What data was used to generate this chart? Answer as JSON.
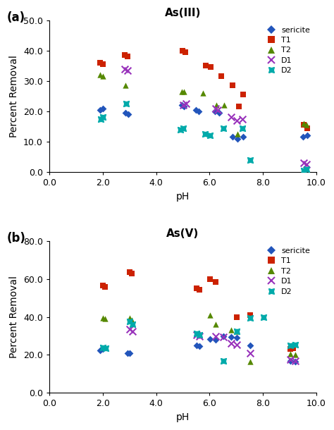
{
  "panel_a": {
    "title": "As(III)",
    "xlabel": "pH",
    "ylabel": "Percent Removal",
    "xlim": [
      0.0,
      10.0
    ],
    "ylim": [
      0.0,
      50.0
    ],
    "yticks": [
      0.0,
      10.0,
      20.0,
      30.0,
      40.0,
      50.0
    ],
    "xticks": [
      0.0,
      2.0,
      4.0,
      6.0,
      8.0,
      10.0
    ],
    "sericite": {
      "x": [
        1.9,
        2.0,
        2.85,
        2.95,
        4.95,
        5.05,
        5.5,
        5.6,
        6.2,
        6.35,
        6.85,
        7.05,
        7.25,
        9.5,
        9.65
      ],
      "y": [
        20.5,
        21.0,
        19.5,
        19.0,
        22.0,
        21.5,
        20.5,
        20.0,
        20.0,
        19.5,
        11.5,
        11.0,
        11.5,
        11.5,
        12.0
      ]
    },
    "T1": {
      "x": [
        1.9,
        2.0,
        2.82,
        2.92,
        5.0,
        5.1,
        5.85,
        6.05,
        6.45,
        6.85,
        7.1,
        7.25,
        9.52,
        9.67
      ],
      "y": [
        36.0,
        35.5,
        38.5,
        38.0,
        40.0,
        39.5,
        35.0,
        34.5,
        31.5,
        28.5,
        21.5,
        25.5,
        15.5,
        14.5
      ]
    },
    "T2": {
      "x": [
        1.9,
        2.0,
        2.85,
        4.95,
        5.05,
        5.75,
        6.25,
        6.55,
        7.05,
        9.52,
        9.62
      ],
      "y": [
        32.0,
        31.5,
        28.5,
        26.5,
        26.5,
        26.0,
        22.0,
        22.0,
        12.5,
        16.0,
        15.5
      ]
    },
    "D1": {
      "x": [
        2.82,
        2.92,
        5.02,
        5.12,
        6.22,
        6.32,
        6.82,
        7.02,
        7.22,
        9.52,
        9.62
      ],
      "y": [
        34.0,
        33.5,
        22.0,
        22.5,
        21.0,
        20.5,
        18.0,
        17.0,
        17.5,
        3.0,
        2.5
      ]
    },
    "D2": {
      "x": [
        1.92,
        2.02,
        2.87,
        4.92,
        5.02,
        5.82,
        6.02,
        6.52,
        7.22,
        7.52,
        9.52,
        9.62
      ],
      "y": [
        17.5,
        18.0,
        22.5,
        14.0,
        14.5,
        12.5,
        12.0,
        14.5,
        14.5,
        4.0,
        0.5,
        1.0
      ]
    }
  },
  "panel_b": {
    "title": "As(V)",
    "xlabel": "pH",
    "ylabel": "Percent Removal",
    "xlim": [
      0.0,
      10.0
    ],
    "ylim": [
      0.0,
      80.0
    ],
    "yticks": [
      0.0,
      20.0,
      40.0,
      60.0,
      80.0
    ],
    "xticks": [
      0.0,
      2.0,
      4.0,
      6.0,
      8.0,
      10.0
    ],
    "sericite": {
      "x": [
        1.9,
        2.0,
        2.92,
        3.02,
        5.52,
        5.62,
        6.02,
        6.22,
        6.52,
        6.82,
        7.02,
        7.52,
        9.02,
        9.22
      ],
      "y": [
        22.5,
        23.0,
        21.0,
        21.0,
        25.0,
        24.5,
        28.5,
        28.0,
        30.0,
        29.5,
        29.0,
        25.0,
        17.0,
        16.5
      ]
    },
    "T1": {
      "x": [
        2.0,
        2.1,
        3.0,
        3.1,
        5.52,
        5.62,
        6.02,
        6.22,
        7.02,
        7.52,
        9.02,
        9.12
      ],
      "y": [
        56.5,
        56.0,
        63.5,
        63.0,
        55.0,
        54.5,
        60.0,
        58.5,
        40.0,
        41.0,
        23.0,
        23.5
      ]
    },
    "T2": {
      "x": [
        2.0,
        2.1,
        3.0,
        3.1,
        6.02,
        6.22,
        6.82,
        7.02,
        7.52,
        9.02,
        9.22
      ],
      "y": [
        39.5,
        39.0,
        39.5,
        38.5,
        41.0,
        36.0,
        33.0,
        32.5,
        16.5,
        20.5,
        20.0
      ]
    },
    "D1": {
      "x": [
        3.02,
        3.12,
        5.52,
        5.62,
        6.22,
        6.52,
        6.82,
        7.02,
        7.52,
        9.02,
        9.22
      ],
      "y": [
        33.5,
        32.5,
        30.5,
        30.0,
        30.0,
        29.5,
        26.0,
        25.5,
        21.0,
        17.5,
        17.0
      ]
    },
    "D2": {
      "x": [
        2.02,
        2.12,
        3.02,
        3.12,
        5.52,
        5.62,
        6.52,
        7.02,
        7.52,
        8.02,
        9.02,
        9.22
      ],
      "y": [
        24.0,
        23.5,
        37.5,
        36.0,
        31.5,
        30.5,
        17.0,
        32.5,
        39.5,
        40.0,
        25.0,
        25.5
      ]
    }
  },
  "colors": {
    "sericite": "#2255BB",
    "T1": "#CC2200",
    "T2": "#558800",
    "D1": "#9933BB",
    "D2": "#00AAAA"
  },
  "label_a": "(a)",
  "label_b": "(b)"
}
